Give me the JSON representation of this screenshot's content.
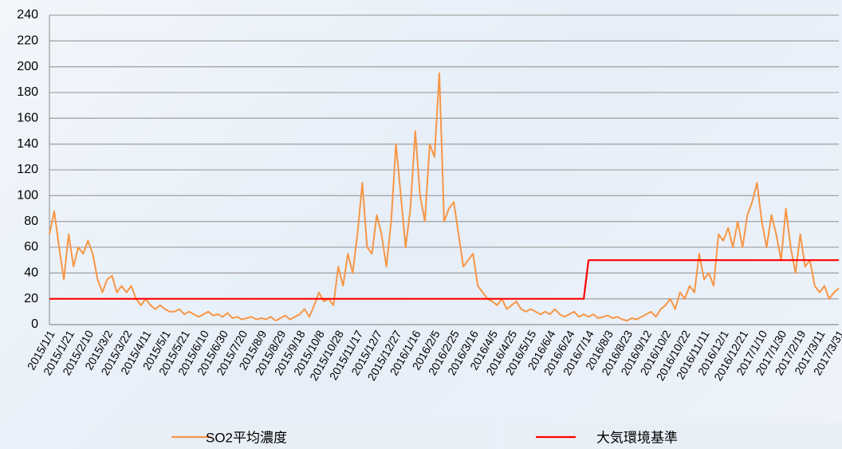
{
  "chart_data": {
    "type": "line",
    "categories": [
      "2015/1/1",
      null,
      null,
      null,
      "2015/1/21",
      null,
      null,
      null,
      "2015/2/10",
      null,
      null,
      null,
      "2015/3/2",
      null,
      null,
      null,
      "2015/3/22",
      null,
      null,
      null,
      "2015/4/11",
      null,
      null,
      null,
      "2015/5/1",
      null,
      null,
      null,
      "2015/5/21",
      null,
      null,
      null,
      "2015/6/10",
      null,
      null,
      null,
      "2015/6/30",
      null,
      null,
      null,
      "2015/7/20",
      null,
      null,
      null,
      "2015/8/9",
      null,
      null,
      null,
      "2015/8/29",
      null,
      null,
      null,
      "2015/9/18",
      null,
      null,
      null,
      "2015/10/8",
      null,
      null,
      null,
      "2015/10/28",
      null,
      null,
      null,
      "2015/11/17",
      null,
      null,
      null,
      "2015/12/7",
      null,
      null,
      null,
      "2015/12/27",
      null,
      null,
      null,
      "2016/1/16",
      null,
      null,
      null,
      "2016/2/5",
      null,
      null,
      null,
      "2016/2/25",
      null,
      null,
      null,
      "2016/3/16",
      null,
      null,
      null,
      "2016/4/5",
      null,
      null,
      null,
      "2016/4/25",
      null,
      null,
      null,
      "2016/5/15",
      null,
      null,
      null,
      "2016/6/4",
      null,
      null,
      null,
      "2016/6/24",
      null,
      null,
      null,
      "2016/7/14",
      null,
      null,
      null,
      "2016/8/3",
      null,
      null,
      null,
      "2016/8/23",
      null,
      null,
      null,
      "2016/9/12",
      null,
      null,
      null,
      "2016/10/2",
      null,
      null,
      null,
      "2016/10/22",
      null,
      null,
      null,
      "2016/11/11",
      null,
      null,
      null,
      "2016/12/1",
      null,
      null,
      null,
      "2016/12/21",
      null,
      null,
      null,
      "2017/1/10",
      null,
      null,
      null,
      "2017/1/30",
      null,
      null,
      null,
      "2017/2/19",
      null,
      null,
      null,
      "2017/3/11",
      null,
      null,
      null,
      "2017/3/31"
    ],
    "series": [
      {
        "name": "SO2平均濃度",
        "color": "#f79646",
        "values": [
          70,
          88,
          60,
          35,
          70,
          45,
          60,
          55,
          65,
          55,
          35,
          25,
          35,
          38,
          25,
          30,
          25,
          30,
          20,
          15,
          20,
          15,
          12,
          15,
          12,
          10,
          10,
          12,
          8,
          10,
          8,
          6,
          8,
          10,
          7,
          8,
          6,
          9,
          5,
          6,
          4,
          5,
          6,
          4,
          5,
          4,
          6,
          3,
          5,
          7,
          4,
          6,
          8,
          12,
          6,
          15,
          25,
          18,
          20,
          15,
          45,
          30,
          55,
          40,
          70,
          110,
          60,
          55,
          85,
          70,
          45,
          80,
          140,
          100,
          60,
          90,
          150,
          100,
          80,
          140,
          130,
          195,
          80,
          90,
          95,
          70,
          45,
          50,
          55,
          30,
          25,
          20,
          18,
          15,
          20,
          12,
          15,
          18,
          12,
          10,
          12,
          10,
          8,
          10,
          8,
          12,
          8,
          6,
          8,
          10,
          6,
          8,
          6,
          8,
          5,
          6,
          7,
          5,
          6,
          4,
          3,
          5,
          4,
          6,
          8,
          10,
          6,
          12,
          15,
          20,
          12,
          25,
          20,
          30,
          25,
          55,
          35,
          40,
          30,
          70,
          65,
          75,
          60,
          80,
          60,
          85,
          95,
          110,
          80,
          60,
          85,
          70,
          50,
          90,
          60,
          40,
          70,
          45,
          50,
          30,
          25,
          30,
          20,
          25,
          28
        ]
      },
      {
        "name": "大気環境基準",
        "color": "#ff0000",
        "values": [
          20,
          20,
          20,
          20,
          20,
          20,
          20,
          20,
          20,
          20,
          20,
          20,
          20,
          20,
          20,
          20,
          20,
          20,
          20,
          20,
          20,
          20,
          20,
          20,
          20,
          20,
          20,
          20,
          20,
          20,
          20,
          20,
          20,
          20,
          20,
          20,
          20,
          20,
          20,
          20,
          20,
          20,
          20,
          20,
          20,
          20,
          20,
          20,
          20,
          20,
          20,
          20,
          20,
          20,
          20,
          20,
          20,
          20,
          20,
          20,
          20,
          20,
          20,
          20,
          20,
          20,
          20,
          20,
          20,
          20,
          20,
          20,
          20,
          20,
          20,
          20,
          20,
          20,
          20,
          20,
          20,
          20,
          20,
          20,
          20,
          20,
          20,
          20,
          20,
          20,
          20,
          20,
          20,
          20,
          20,
          20,
          20,
          20,
          20,
          20,
          20,
          20,
          20,
          20,
          20,
          20,
          20,
          20,
          20,
          20,
          20,
          20,
          50,
          50,
          50,
          50,
          50,
          50,
          50,
          50,
          50,
          50,
          50,
          50,
          50,
          50,
          50,
          50,
          50,
          50,
          50,
          50,
          50,
          50,
          50,
          50,
          50,
          50,
          50,
          50,
          50,
          50,
          50,
          50,
          50,
          50,
          50,
          50,
          50,
          50,
          50,
          50,
          50,
          50,
          50,
          50,
          50,
          50,
          50,
          50,
          50,
          50,
          50,
          50,
          50
        ]
      }
    ],
    "ylim": [
      0,
      240
    ],
    "yticks": [
      0,
      20,
      40,
      60,
      80,
      100,
      120,
      140,
      160,
      180,
      200,
      220,
      240
    ],
    "grid": true,
    "legend": "bottom"
  }
}
